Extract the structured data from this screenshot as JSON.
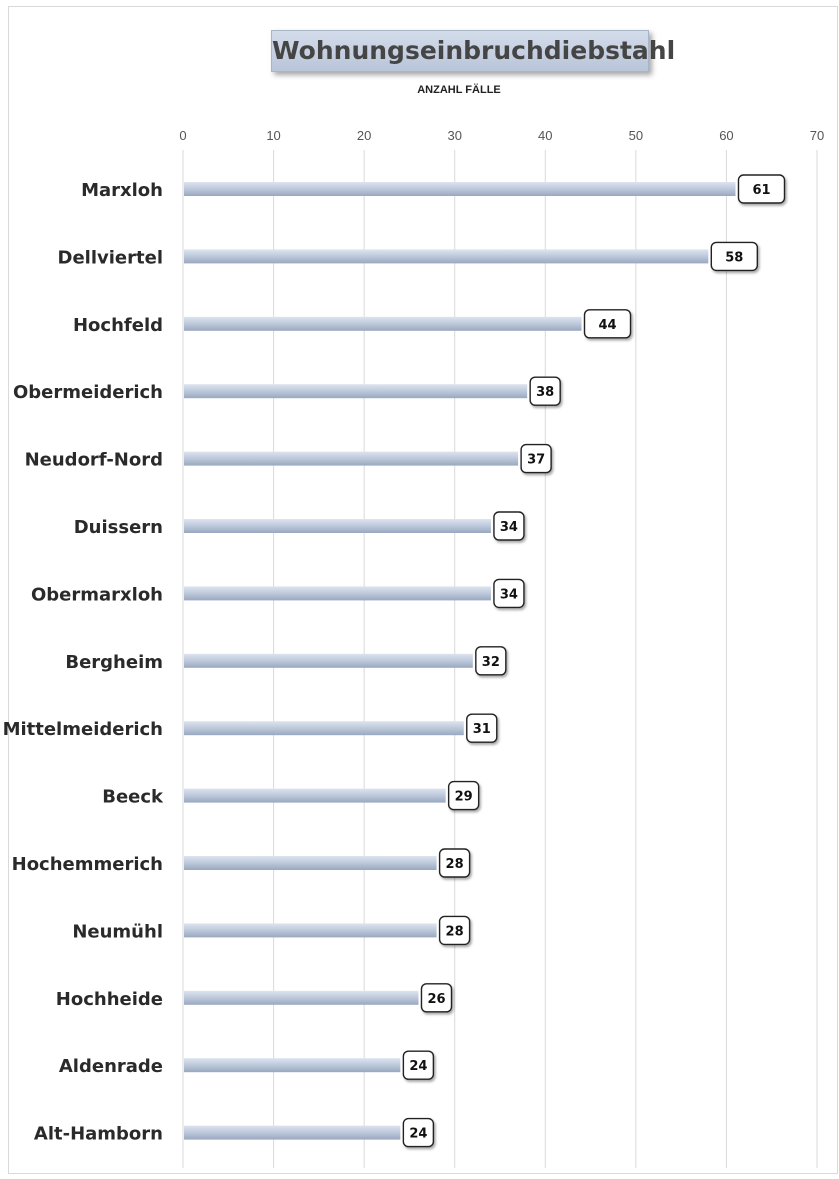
{
  "chart_data": {
    "type": "bar",
    "orientation": "horizontal",
    "title": "Wohnungseinbruchdiebstahl",
    "subtitle": "ANZAHL FÄLLE",
    "categories": [
      "Marxloh",
      "Dellviertel",
      "Hochfeld",
      "Obermeiderich",
      "Neudorf-Nord",
      "Duissern",
      "Obermarxloh",
      "Bergheim",
      "Mittelmeiderich",
      "Beeck",
      "Hochemmerich",
      "Neumühl",
      "Hochheide",
      "Aldenrade",
      "Alt-Hamborn"
    ],
    "values": [
      61,
      58,
      44,
      38,
      37,
      34,
      34,
      32,
      31,
      29,
      28,
      28,
      26,
      24,
      24
    ],
    "xlim": [
      0,
      70
    ],
    "ticks": [
      0,
      10,
      20,
      30,
      40,
      50,
      60,
      70
    ],
    "axis_position": "top",
    "grid": true,
    "data_labels": true,
    "bar_color": "#b7c3d6"
  }
}
